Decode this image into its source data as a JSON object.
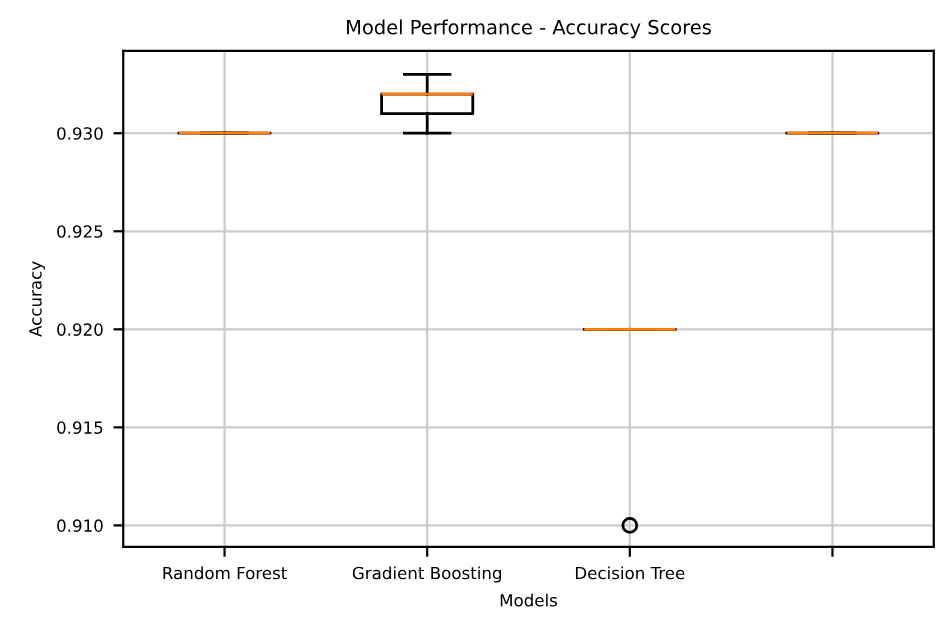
{
  "chart_data": {
    "type": "box",
    "title": "Model Performance - Accuracy Scores",
    "xlabel": "Models",
    "ylabel": "Accuracy",
    "categories": [
      "Random Forest",
      "Gradient Boosting",
      "Decision Tree",
      null
    ],
    "boxes": [
      {
        "low": 0.93,
        "q1": 0.93,
        "median": 0.93,
        "q3": 0.93,
        "high": 0.93
      },
      {
        "low": 0.93,
        "q1": 0.931,
        "median": 0.932,
        "q3": 0.932,
        "high": 0.933
      },
      {
        "low": 0.92,
        "q1": 0.92,
        "median": 0.92,
        "q3": 0.92,
        "high": 0.92,
        "outliers": [
          0.91
        ]
      },
      {
        "low": 0.93,
        "q1": 0.93,
        "median": 0.93,
        "q3": 0.93,
        "high": 0.93
      }
    ],
    "ylim": [
      0.9089,
      0.9342
    ],
    "yticks": [
      {
        "value": 0.91,
        "label": "0.910"
      },
      {
        "value": 0.915,
        "label": "0.915"
      },
      {
        "value": 0.92,
        "label": "0.920"
      },
      {
        "value": 0.925,
        "label": "0.925"
      },
      {
        "value": 0.93,
        "label": "0.930"
      }
    ],
    "grid": true
  }
}
